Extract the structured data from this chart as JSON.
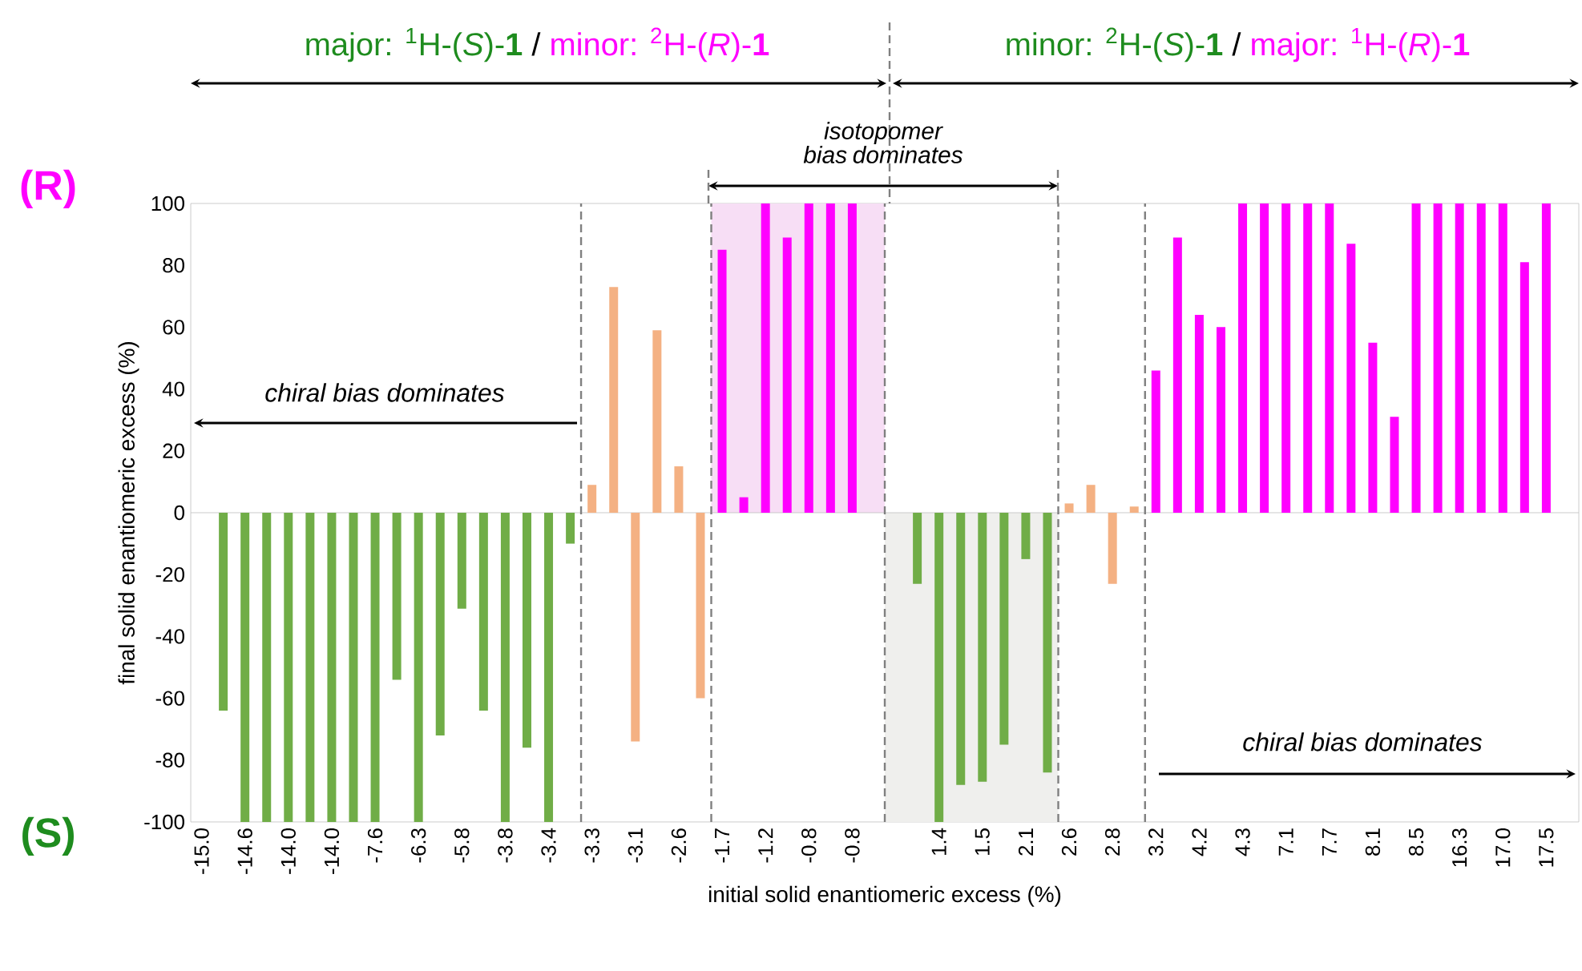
{
  "chart_data": {
    "type": "bar",
    "xlabel": "initial solid enantiomeric excess (%)",
    "ylabel": "final solid enantiomeric excess (%)",
    "categories": [
      "-15.0",
      null,
      "-14.6",
      null,
      "-14.0",
      null,
      "-14.0",
      null,
      "-7.6",
      null,
      "-6.3",
      null,
      "-5.8",
      null,
      "-3.8",
      null,
      "-3.4",
      null,
      "-3.3",
      null,
      "-3.1",
      null,
      "-2.6",
      null,
      "-1.7",
      null,
      "-1.2",
      null,
      "-0.8",
      null,
      "-0.8",
      null,
      null,
      null,
      "1.4",
      null,
      "1.5",
      null,
      "2.1",
      null,
      "2.6",
      null,
      "2.8",
      null,
      "3.2",
      null,
      "4.2",
      null,
      "4.3",
      null,
      "7.1",
      null,
      "7.7",
      null,
      "8.1",
      null,
      "8.5",
      null,
      "16.3",
      null,
      "17.0",
      null,
      "17.5",
      null
    ],
    "values": [
      null,
      -64,
      -100,
      -100,
      -100,
      -100,
      -100,
      -100,
      -100,
      -54,
      -100,
      -72,
      -31,
      -64,
      -100,
      -76,
      -100,
      -10,
      9,
      73,
      -74,
      59,
      15,
      -60,
      85,
      5,
      100,
      89,
      100,
      100,
      100,
      null,
      null,
      -23,
      -100,
      -88,
      -87,
      -75,
      -15,
      -84,
      3,
      9,
      -23,
      2,
      46,
      89,
      64,
      60,
      100,
      100,
      100,
      100,
      100,
      87,
      55,
      31,
      100,
      100,
      100,
      100,
      100,
      81,
      100,
      null
    ],
    "colors": [
      null,
      "#70ad47",
      "#70ad47",
      "#70ad47",
      "#70ad47",
      "#70ad47",
      "#70ad47",
      "#70ad47",
      "#70ad47",
      "#70ad47",
      "#70ad47",
      "#70ad47",
      "#70ad47",
      "#70ad47",
      "#70ad47",
      "#70ad47",
      "#70ad47",
      "#70ad47",
      "#f4b183",
      "#f4b183",
      "#f4b183",
      "#f4b183",
      "#f4b183",
      "#f4b183",
      "#ff00ff",
      "#ff00ff",
      "#ff00ff",
      "#ff00ff",
      "#ff00ff",
      "#ff00ff",
      "#ff00ff",
      null,
      null,
      "#70ad47",
      "#70ad47",
      "#70ad47",
      "#70ad47",
      "#70ad47",
      "#70ad47",
      "#70ad47",
      "#f4b183",
      "#f4b183",
      "#f4b183",
      "#f4b183",
      "#ff00ff",
      "#ff00ff",
      "#ff00ff",
      "#ff00ff",
      "#ff00ff",
      "#ff00ff",
      "#ff00ff",
      "#ff00ff",
      "#ff00ff",
      "#ff00ff",
      "#ff00ff",
      "#ff00ff",
      "#ff00ff",
      "#ff00ff",
      "#ff00ff",
      "#ff00ff",
      "#ff00ff",
      "#ff00ff",
      "#ff00ff",
      null
    ],
    "ylim": [
      -100,
      100
    ],
    "yticks": [
      -100,
      -80,
      -60,
      -40,
      -20,
      0,
      20,
      40,
      60,
      80,
      100
    ],
    "annotations": [
      "major: $^{1}$H-(*S*)-**1**",
      "/",
      "minor: $^{2}$H-(*R*)-**1**",
      "minor: $^{2}$H-(*S*)-**1**",
      "/",
      "major: $^{1}$H-(*R*)-**1**",
      "isotopomer bias dominates",
      "chiral bias dominates",
      "chiral bias dominates",
      "(R)",
      "(S)"
    ]
  }
}
